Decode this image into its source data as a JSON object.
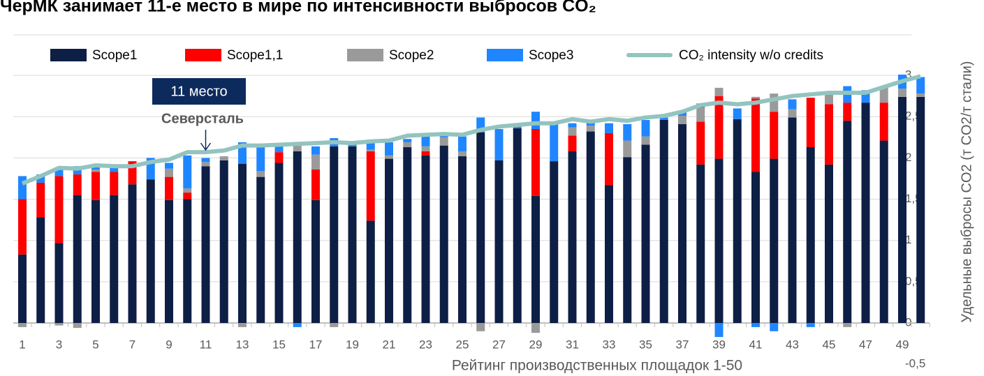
{
  "chart_data": {
    "type": "bar",
    "stacked": true,
    "title": "ЧерМК занимает 11-е место в мире по интенсивности выбросов CO₂",
    "x_label": "Рейтинг производственных площадок 1-50",
    "y_label": "Удельные выбросы CO2 (т CO2/т стали)",
    "annotations": [
      "11 место",
      "Северсталь"
    ],
    "annotation_index": 10,
    "categories": [
      1,
      null,
      3,
      null,
      5,
      null,
      7,
      null,
      9,
      null,
      11,
      null,
      13,
      null,
      15,
      null,
      17,
      null,
      19,
      null,
      21,
      null,
      23,
      null,
      25,
      null,
      27,
      null,
      29,
      null,
      31,
      null,
      33,
      null,
      35,
      null,
      37,
      null,
      39,
      null,
      41,
      null,
      43,
      null,
      45,
      null,
      47,
      null,
      49,
      null
    ],
    "series": [
      {
        "name": "Scope1",
        "color": "#0d1f45",
        "values": [
          0.83,
          1.28,
          0.97,
          1.55,
          1.49,
          1.55,
          1.68,
          1.74,
          1.49,
          1.5,
          1.9,
          1.97,
          1.93,
          1.77,
          1.94,
          2.08,
          1.49,
          2.14,
          2.14,
          1.24,
          1.99,
          2.13,
          2.03,
          2.15,
          2.02,
          2.31,
          1.97,
          2.36,
          1.54,
          1.96,
          2.08,
          2.32,
          1.67,
          2.01,
          2.16,
          2.46,
          2.41,
          1.92,
          1.99,
          2.47,
          1.83,
          1.99,
          2.49,
          2.13,
          1.92,
          2.45,
          2.67,
          2.21,
          2.74,
          2.74
        ]
      },
      {
        "name": "Scope1,1",
        "color": "#ff0000",
        "values": [
          0.67,
          0.42,
          0.81,
          0.25,
          0.34,
          0.28,
          0.28,
          0,
          0.28,
          0.08,
          0,
          0,
          0,
          0,
          0.13,
          0,
          0.37,
          0,
          0,
          0.84,
          0,
          0,
          0.05,
          0,
          0,
          0,
          0,
          0,
          0.81,
          0,
          0.19,
          0,
          0.63,
          0,
          0,
          0,
          0,
          0.52,
          0.76,
          0,
          0.89,
          0.57,
          0,
          0.6,
          0.73,
          0.22,
          0,
          0.46,
          0,
          0
        ]
      },
      {
        "name": "Scope2",
        "color": "#9a9a9a",
        "values": [
          -0.05,
          0,
          -0.03,
          -0.06,
          0.03,
          0,
          0,
          0,
          0.1,
          0.05,
          0.05,
          0.05,
          -0.05,
          0.07,
          0,
          0.07,
          0.18,
          -0.05,
          0,
          0.02,
          0.04,
          0.06,
          0.06,
          0.1,
          0.06,
          -0.1,
          0,
          0,
          -0.12,
          0,
          0.1,
          0.07,
          0,
          0.2,
          0.1,
          0,
          0.1,
          0.17,
          0.1,
          0,
          0.02,
          0.22,
          0.1,
          0,
          0.12,
          -0.05,
          0,
          0.2,
          0.1,
          0.04
        ]
      },
      {
        "name": "Scope3",
        "color": "#1f86ff",
        "values": [
          0.28,
          0.1,
          0.08,
          0.1,
          0.04,
          0.07,
          0,
          0.26,
          0.07,
          0.4,
          0.05,
          0,
          0.26,
          0.3,
          0.07,
          -0.05,
          0.1,
          0.1,
          0.04,
          0.08,
          0.16,
          0.04,
          0.13,
          0.05,
          0.18,
          0.18,
          0.38,
          0.05,
          0.21,
          0.45,
          0.05,
          0.05,
          0.12,
          0.2,
          0.2,
          0.03,
          0.05,
          0.05,
          -0.17,
          0.13,
          -0.05,
          -0.1,
          0.12,
          -0.05,
          0,
          0.2,
          0.15,
          0,
          0.17,
          0.2
        ]
      },
      {
        "name": "CO₂ intensity w/o credits",
        "type": "line",
        "color": "#93c4bf",
        "values": [
          1.69,
          1.78,
          1.88,
          1.87,
          1.91,
          1.9,
          1.9,
          1.95,
          1.98,
          2.07,
          2.07,
          2.09,
          2.15,
          2.15,
          2.16,
          2.17,
          2.18,
          2.19,
          2.18,
          2.2,
          2.21,
          2.27,
          2.28,
          2.29,
          2.28,
          2.34,
          2.38,
          2.4,
          2.42,
          2.42,
          2.47,
          2.44,
          2.47,
          2.45,
          2.49,
          2.51,
          2.56,
          2.64,
          2.67,
          2.65,
          2.67,
          2.71,
          2.75,
          2.77,
          2.79,
          2.79,
          2.79,
          2.86,
          2.93,
          2.99
        ]
      }
    ],
    "ylim": [
      -0.5,
      3.5
    ],
    "yticks": [
      {
        "value": -0.5,
        "label": "-0,5"
      },
      0,
      {
        "value": 0.5,
        "label": "0,5"
      },
      1,
      {
        "value": 1.5,
        "label": "1,5"
      },
      2,
      {
        "value": 2.5,
        "label": "2,5"
      },
      3
    ],
    "grid": true,
    "legend": "top"
  }
}
